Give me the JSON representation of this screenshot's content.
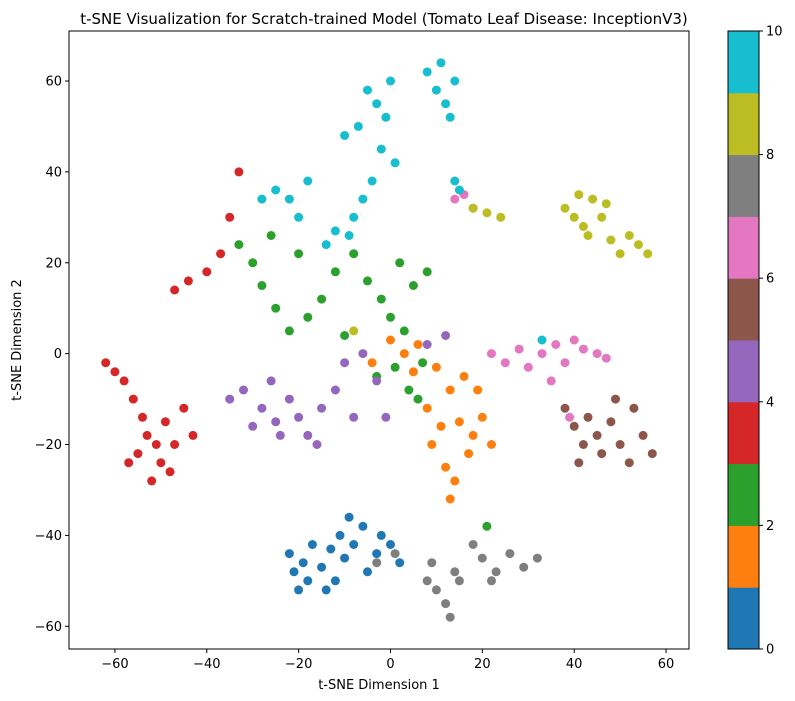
{
  "chart_data": {
    "type": "scatter",
    "title": "t-SNE Visualization for Scratch-trained Model (Tomato Leaf Disease: InceptionV3)",
    "xlabel": "t-SNE Dimension 1",
    "ylabel": "t-SNE Dimension 2",
    "xlim": [
      -70,
      65
    ],
    "ylim": [
      -65,
      71
    ],
    "xticks": [
      "−60",
      "−40",
      "−20",
      "0",
      "20",
      "40",
      "60"
    ],
    "xtick_values": [
      -60,
      -40,
      -20,
      0,
      20,
      40,
      60
    ],
    "yticks": [
      "−60",
      "−40",
      "−20",
      "0",
      "20",
      "40",
      "60"
    ],
    "ytick_values": [
      -60,
      -40,
      -20,
      0,
      20,
      40,
      60
    ],
    "grid": false,
    "colorbar": {
      "label": "",
      "range": [
        0,
        10
      ],
      "ticks": [
        "0",
        "2",
        "4",
        "6",
        "8",
        "10"
      ],
      "tick_values": [
        0,
        2,
        4,
        6,
        8,
        10
      ],
      "colors": [
        "#1f77b4",
        "#ff7f0e",
        "#2ca02c",
        "#d62728",
        "#9467bd",
        "#8c564b",
        "#e377c2",
        "#7f7f7f",
        "#bcbd22",
        "#17becf"
      ]
    },
    "clusters": [
      {
        "class": 0,
        "color": "#1f77b4",
        "points": [
          [
            -20,
            -52
          ],
          [
            -21,
            -48
          ],
          [
            -22,
            -44
          ],
          [
            -18,
            -50
          ],
          [
            -15,
            -47
          ],
          [
            -13,
            -43
          ],
          [
            -10,
            -45
          ],
          [
            -8,
            -42
          ],
          [
            -6,
            -38
          ],
          [
            -3,
            -44
          ],
          [
            0,
            -42
          ],
          [
            2,
            -46
          ],
          [
            -12,
            -50
          ],
          [
            -17,
            -42
          ],
          [
            -5,
            -48
          ],
          [
            -2,
            -40
          ],
          [
            -9,
            -36
          ],
          [
            -14,
            -52
          ],
          [
            -19,
            -46
          ],
          [
            -11,
            -40
          ]
        ]
      },
      {
        "class": 1,
        "color": "#ff7f0e",
        "points": [
          [
            3,
            0
          ],
          [
            6,
            2
          ],
          [
            10,
            -3
          ],
          [
            13,
            -8
          ],
          [
            15,
            -15
          ],
          [
            18,
            -18
          ],
          [
            20,
            -14
          ],
          [
            22,
            -20
          ],
          [
            9,
            -20
          ],
          [
            12,
            -25
          ],
          [
            14,
            -28
          ],
          [
            17,
            -22
          ],
          [
            5,
            -4
          ],
          [
            -4,
            -2
          ],
          [
            0,
            3
          ],
          [
            16,
            -5
          ],
          [
            19,
            -8
          ],
          [
            11,
            -16
          ],
          [
            13,
            -32
          ],
          [
            8,
            -12
          ]
        ]
      },
      {
        "class": 2,
        "color": "#2ca02c",
        "points": [
          [
            -30,
            20
          ],
          [
            -28,
            15
          ],
          [
            -25,
            10
          ],
          [
            -22,
            5
          ],
          [
            -18,
            8
          ],
          [
            -15,
            12
          ],
          [
            -12,
            18
          ],
          [
            -8,
            22
          ],
          [
            -5,
            16
          ],
          [
            -2,
            12
          ],
          [
            0,
            8
          ],
          [
            3,
            5
          ],
          [
            5,
            15
          ],
          [
            8,
            18
          ],
          [
            2,
            20
          ],
          [
            -3,
            -5
          ],
          [
            6,
            -10
          ],
          [
            4,
            -8
          ],
          [
            -26,
            26
          ],
          [
            -33,
            24
          ],
          [
            -20,
            22
          ],
          [
            -10,
            4
          ],
          [
            1,
            -3
          ],
          [
            7,
            -2
          ],
          [
            21,
            -38
          ]
        ]
      },
      {
        "class": 3,
        "color": "#d62728",
        "points": [
          [
            -62,
            -2
          ],
          [
            -60,
            -4
          ],
          [
            -58,
            -6
          ],
          [
            -56,
            -10
          ],
          [
            -54,
            -14
          ],
          [
            -53,
            -18
          ],
          [
            -55,
            -22
          ],
          [
            -50,
            -24
          ],
          [
            -48,
            -26
          ],
          [
            -52,
            -28
          ],
          [
            -47,
            -20
          ],
          [
            -49,
            -15
          ],
          [
            -57,
            -24
          ],
          [
            -51,
            -20
          ],
          [
            -45,
            -12
          ],
          [
            -43,
            -18
          ],
          [
            -40,
            18
          ],
          [
            -37,
            22
          ],
          [
            -33,
            40
          ],
          [
            -35,
            30
          ],
          [
            -47,
            14
          ],
          [
            -44,
            16
          ]
        ]
      },
      {
        "class": 4,
        "color": "#9467bd",
        "points": [
          [
            -35,
            -10
          ],
          [
            -32,
            -8
          ],
          [
            -28,
            -12
          ],
          [
            -25,
            -15
          ],
          [
            -22,
            -10
          ],
          [
            -18,
            -18
          ],
          [
            -15,
            -12
          ],
          [
            -12,
            -8
          ],
          [
            -20,
            -14
          ],
          [
            -26,
            -6
          ],
          [
            -30,
            -16
          ],
          [
            -10,
            -2
          ],
          [
            -6,
            0
          ],
          [
            -3,
            -6
          ],
          [
            -8,
            -14
          ],
          [
            8,
            2
          ],
          [
            12,
            4
          ],
          [
            -1,
            -14
          ],
          [
            -16,
            -20
          ],
          [
            -24,
            -18
          ]
        ]
      },
      {
        "class": 5,
        "color": "#8c564b",
        "points": [
          [
            38,
            -12
          ],
          [
            40,
            -16
          ],
          [
            42,
            -20
          ],
          [
            45,
            -18
          ],
          [
            48,
            -15
          ],
          [
            50,
            -20
          ],
          [
            52,
            -24
          ],
          [
            55,
            -18
          ],
          [
            53,
            -12
          ],
          [
            46,
            -22
          ],
          [
            43,
            -14
          ],
          [
            57,
            -22
          ],
          [
            49,
            -10
          ],
          [
            41,
            -24
          ]
        ]
      },
      {
        "class": 6,
        "color": "#e377c2",
        "points": [
          [
            22,
            0
          ],
          [
            25,
            -2
          ],
          [
            28,
            1
          ],
          [
            30,
            -3
          ],
          [
            33,
            0
          ],
          [
            36,
            2
          ],
          [
            38,
            -2
          ],
          [
            40,
            3
          ],
          [
            42,
            1
          ],
          [
            45,
            0
          ],
          [
            47,
            -1
          ],
          [
            35,
            -6
          ],
          [
            16,
            35
          ],
          [
            18,
            32
          ],
          [
            14,
            34
          ],
          [
            39,
            -14
          ]
        ]
      },
      {
        "class": 7,
        "color": "#7f7f7f",
        "points": [
          [
            8,
            -50
          ],
          [
            10,
            -52
          ],
          [
            12,
            -55
          ],
          [
            13,
            -58
          ],
          [
            15,
            -50
          ],
          [
            9,
            -46
          ],
          [
            20,
            -45
          ],
          [
            23,
            -48
          ],
          [
            26,
            -44
          ],
          [
            29,
            -47
          ],
          [
            32,
            -45
          ],
          [
            18,
            -42
          ],
          [
            22,
            -50
          ],
          [
            14,
            -48
          ],
          [
            -3,
            -46
          ],
          [
            1,
            -44
          ]
        ]
      },
      {
        "class": 8,
        "color": "#bcbd22",
        "points": [
          [
            38,
            32
          ],
          [
            40,
            30
          ],
          [
            42,
            28
          ],
          [
            44,
            34
          ],
          [
            46,
            30
          ],
          [
            48,
            25
          ],
          [
            50,
            22
          ],
          [
            52,
            26
          ],
          [
            54,
            24
          ],
          [
            56,
            22
          ],
          [
            43,
            26
          ],
          [
            47,
            33
          ],
          [
            41,
            35
          ],
          [
            18,
            32
          ],
          [
            21,
            31
          ],
          [
            24,
            30
          ],
          [
            -8,
            5
          ]
        ]
      },
      {
        "class": 9,
        "color": "#17becf",
        "points": [
          [
            -5,
            58
          ],
          [
            -3,
            55
          ],
          [
            -1,
            52
          ],
          [
            0,
            60
          ],
          [
            -7,
            50
          ],
          [
            -10,
            48
          ],
          [
            -2,
            45
          ],
          [
            1,
            42
          ],
          [
            -4,
            38
          ],
          [
            -6,
            34
          ],
          [
            -8,
            30
          ],
          [
            -9,
            26
          ],
          [
            8,
            62
          ],
          [
            10,
            58
          ],
          [
            12,
            55
          ],
          [
            14,
            60
          ],
          [
            13,
            52
          ],
          [
            11,
            64
          ],
          [
            -25,
            36
          ],
          [
            -22,
            34
          ],
          [
            -18,
            38
          ],
          [
            -20,
            30
          ],
          [
            14,
            38
          ],
          [
            15,
            36
          ],
          [
            -14,
            24
          ],
          [
            -12,
            27
          ],
          [
            -28,
            34
          ],
          [
            33,
            3
          ]
        ]
      }
    ]
  }
}
